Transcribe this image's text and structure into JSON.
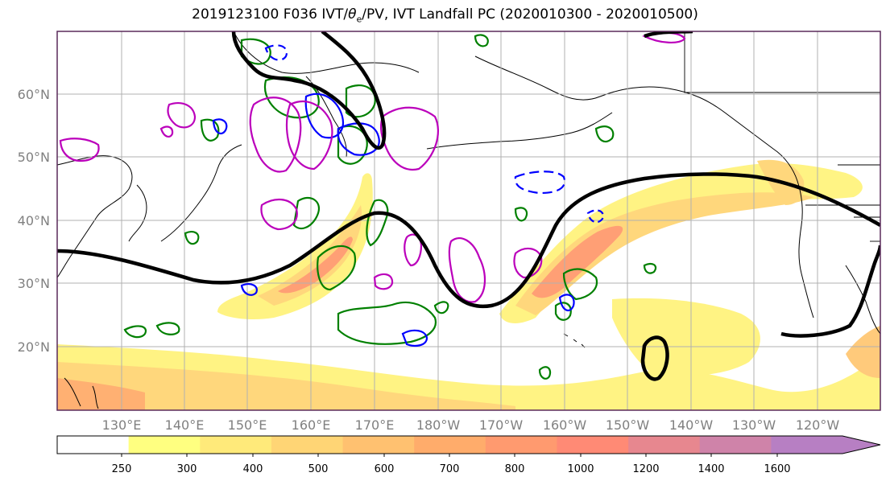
{
  "title": "2019123100 F036 IVT/θe/PV, IVT Landfall PC (2020010300 - 2020010500)",
  "title_parts": {
    "prefix": "2019123100 F036 IVT/",
    "theta": "θ",
    "sub": "e",
    "suffix": "/PV, IVT Landfall PC (2020010300 - 2020010500)"
  },
  "map": {
    "lat_labels": [
      "60°N",
      "50°N",
      "40°N",
      "30°N",
      "20°N"
    ],
    "lon_labels": [
      "130°E",
      "140°E",
      "150°E",
      "160°E",
      "170°E",
      "180°W",
      "170°W",
      "160°W",
      "150°W",
      "140°W",
      "130°W",
      "120°W"
    ],
    "grid": true
  },
  "colorbar": {
    "levels": [
      "250",
      "300",
      "400",
      "500",
      "600",
      "700",
      "800",
      "1000",
      "1200",
      "1400",
      "1600"
    ],
    "colors": [
      "#ffff80",
      "#ffea7a",
      "#ffd575",
      "#ffc170",
      "#ffac6b",
      "#ff9a6f",
      "#ff8a75",
      "#e7878f",
      "#cf83a9",
      "#b77fc3"
    ],
    "under_color": "#ffffff",
    "extend": "max"
  },
  "colors": {
    "ivt_low": "#fff37d",
    "ivt_mid": "#ffc874",
    "ivt_high": "#ff9a6e",
    "pc_contour": "#000000",
    "pv_positive": "#008000",
    "pv_negative": "#0000ff",
    "theta_e": "#bb00bb"
  }
}
